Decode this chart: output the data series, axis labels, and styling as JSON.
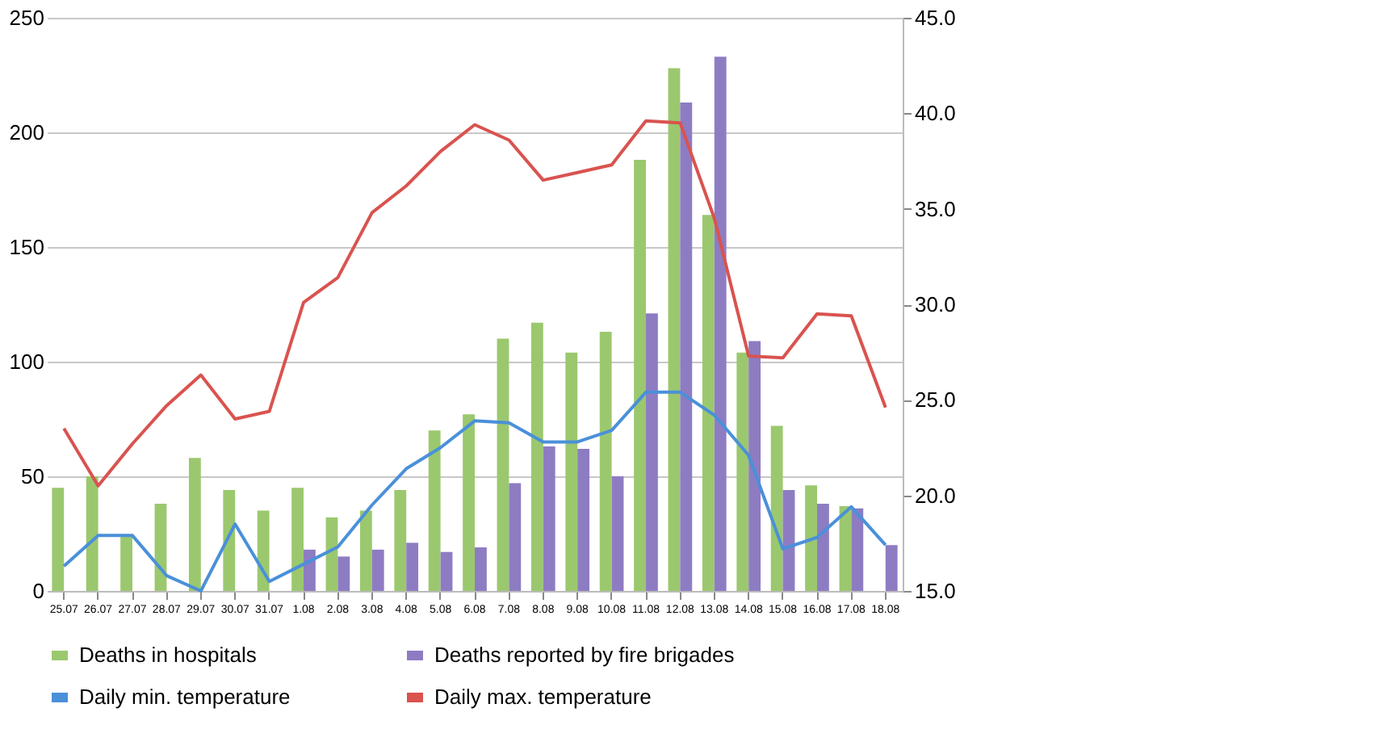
{
  "chart_data": {
    "type": "bar",
    "categories": [
      "25.07",
      "26.07",
      "27.07",
      "28.07",
      "29.07",
      "30.07",
      "31.07",
      "1.08",
      "2.08",
      "3.08",
      "4.08",
      "5.08",
      "6.08",
      "7.08",
      "8.08",
      "9.08",
      "10.08",
      "11.08",
      "12.08",
      "13.08",
      "14.08",
      "15.08",
      "16.08",
      "17.08",
      "18.08"
    ],
    "series": [
      {
        "name": "Deaths in hospitals",
        "color": "#9bc86e",
        "values": [
          45,
          50,
          24,
          38,
          58,
          44,
          35,
          45,
          32,
          35,
          44,
          70,
          77,
          110,
          117,
          104,
          113,
          188,
          228,
          164,
          104,
          72,
          46,
          37,
          null
        ]
      },
      {
        "name": "Deaths reported by fire brigades",
        "color": "#8e7cc3",
        "values": [
          null,
          null,
          null,
          null,
          null,
          null,
          null,
          18,
          15,
          18,
          21,
          17,
          19,
          47,
          63,
          62,
          50,
          121,
          213,
          233,
          109,
          44,
          38,
          36,
          20
        ]
      },
      {
        "name": "Daily min. temperature",
        "color": "#4a90d9",
        "type": "line",
        "axis": "y2",
        "values": [
          16.3,
          17.9,
          17.9,
          15.8,
          15.0,
          18.5,
          15.5,
          16.4,
          17.3,
          19.5,
          21.4,
          22.5,
          23.9,
          23.8,
          22.8,
          22.8,
          23.4,
          25.4,
          25.4,
          24.2,
          22.1,
          17.2,
          17.8,
          19.4,
          17.4
        ]
      },
      {
        "name": "Daily max. temperature",
        "color": "#d9534f",
        "type": "line",
        "axis": "y2",
        "values": [
          23.5,
          20.5,
          22.7,
          24.7,
          26.3,
          24.0,
          24.4,
          30.1,
          31.4,
          34.8,
          36.2,
          38.0,
          39.4,
          38.6,
          36.5,
          36.9,
          37.3,
          39.6,
          39.5,
          34.5,
          27.3,
          27.2,
          29.5,
          29.4,
          24.6
        ]
      }
    ],
    "ylim": [
      0,
      250
    ],
    "yticks": [
      0,
      50,
      100,
      150,
      200,
      250
    ],
    "y2lim": [
      15,
      45
    ],
    "y2ticks": [
      {
        "value": 15,
        "label": "15.0"
      },
      {
        "value": 20,
        "label": "20.0"
      },
      {
        "value": 25,
        "label": "25.0"
      },
      {
        "value": 30,
        "label": "30.0"
      },
      {
        "value": 35,
        "label": "35.0"
      },
      {
        "value": 40,
        "label": "40.0"
      },
      {
        "value": 45,
        "label": "45.0"
      }
    ],
    "grid": "y",
    "legend": "bottom",
    "line_style": "solid",
    "marker": "none"
  }
}
